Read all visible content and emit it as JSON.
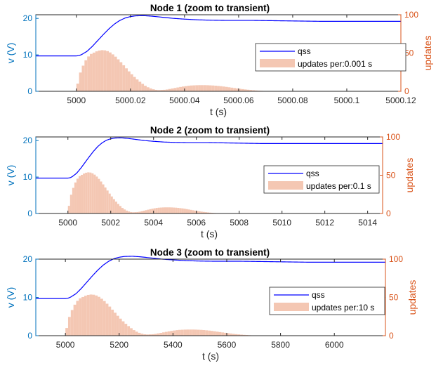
{
  "colors": {
    "left_axis": "#0072BD",
    "right_axis": "#D95319",
    "line": "#0000FF",
    "bars": "#F4C7B3",
    "axes": "#262626"
  },
  "chart_data": [
    {
      "type": "line+bar",
      "title": "Node 1 (zoom to transient)",
      "xlabel": "t (s)",
      "ylabel_left": "v (V)",
      "ylabel_right": "updates",
      "xlim": [
        4999.985,
        5000.12
      ],
      "ylim_left": [
        0,
        21
      ],
      "ylim_right": [
        0,
        100
      ],
      "xticks": [
        5000,
        5000.02,
        5000.04,
        5000.06,
        5000.08,
        5000.1,
        5000.12
      ],
      "xtick_labels": [
        "5000",
        "5000.02",
        "5000.04",
        "5000.06",
        "5000.08",
        "5000.1",
        "5000.12"
      ],
      "yticks_left": [
        0,
        10,
        20
      ],
      "yticks_right": [
        0,
        50,
        100
      ],
      "t0": 5000,
      "t_scale": 0.01,
      "bin_width": 0.001,
      "legend": {
        "line_label": "qss",
        "bar_label": "updates per:0.001 s",
        "location": "right"
      }
    },
    {
      "type": "line+bar",
      "title": "Node 2 (zoom to transient)",
      "xlabel": "t (s)",
      "ylabel_left": "v (V)",
      "ylabel_right": "updates",
      "xlim": [
        4998.5,
        5014.7
      ],
      "ylim_left": [
        0,
        21
      ],
      "ylim_right": [
        0,
        100
      ],
      "xticks": [
        5000,
        5002,
        5004,
        5006,
        5008,
        5010,
        5012,
        5014
      ],
      "xtick_labels": [
        "5000",
        "5002",
        "5004",
        "5006",
        "5008",
        "5010",
        "5012",
        "5014"
      ],
      "yticks_left": [
        0,
        10,
        20
      ],
      "yticks_right": [
        0,
        50,
        100
      ],
      "t0": 5000,
      "t_scale": 1,
      "bin_width": 0.1,
      "legend": {
        "line_label": "qss",
        "bar_label": "updates per:0.1 s",
        "location": "right"
      }
    },
    {
      "type": "line+bar",
      "title": "Node 3 (zoom to transient)",
      "xlabel": "t (s)",
      "ylabel_left": "v (V)",
      "ylabel_right": "updates",
      "xlim": [
        4890,
        6190
      ],
      "ylim_left": [
        0,
        20
      ],
      "ylim_right": [
        0,
        100
      ],
      "xticks": [
        5000,
        5200,
        5400,
        5600,
        5800,
        6000
      ],
      "xtick_labels": [
        "5000",
        "5200",
        "5400",
        "5600",
        "5800",
        "6000"
      ],
      "yticks_left": [
        0,
        10,
        20
      ],
      "yticks_right": [
        0,
        50,
        100
      ],
      "t0": 5000,
      "t_scale": 100,
      "bin_width": 10,
      "legend": {
        "line_label": "qss",
        "bar_label": "updates per:10 s",
        "location": "right"
      }
    }
  ],
  "line_shape": {
    "x_units": [
      -1.5,
      0.0,
      0.1,
      0.2,
      0.4,
      0.6,
      0.8,
      1.0,
      1.2,
      1.4,
      1.6,
      1.8,
      2.0,
      2.2,
      2.5,
      2.8,
      3.2,
      3.6,
      4.0,
      4.5,
      5.0,
      5.5,
      6.0,
      6.5,
      7.0,
      8.0,
      9.0,
      10.0,
      11.0,
      12.0,
      13.0,
      14.0,
      15.0
    ],
    "v": [
      9.7,
      9.7,
      9.8,
      10.1,
      11.0,
      12.4,
      14.0,
      15.6,
      17.1,
      18.4,
      19.4,
      20.1,
      20.5,
      20.7,
      20.75,
      20.6,
      20.3,
      20.0,
      19.8,
      19.6,
      19.5,
      19.45,
      19.45,
      19.45,
      19.4,
      19.3,
      19.2,
      19.2,
      19.2,
      19.2,
      19.2,
      19.2,
      19.2
    ]
  },
  "bar_shape": {
    "x_units": [
      0.0,
      0.1,
      0.3,
      0.5,
      0.8,
      1.0,
      1.2,
      1.4,
      1.6,
      1.8,
      2.0,
      2.2,
      2.4,
      2.6,
      2.8,
      3.0,
      3.3,
      3.6,
      3.9,
      4.2,
      4.5,
      4.8,
      5.1,
      5.4,
      5.7,
      6.0,
      6.3,
      6.6,
      6.9,
      7.2
    ],
    "updates": [
      0,
      20,
      38,
      48,
      53,
      54,
      52,
      47,
      40,
      32,
      24,
      17,
      11,
      6,
      3,
      1.5,
      2,
      4,
      6,
      7.5,
      8,
      8,
      7.5,
      6.5,
      5,
      3.5,
      2.2,
      1.2,
      0.5,
      0
    ]
  }
}
